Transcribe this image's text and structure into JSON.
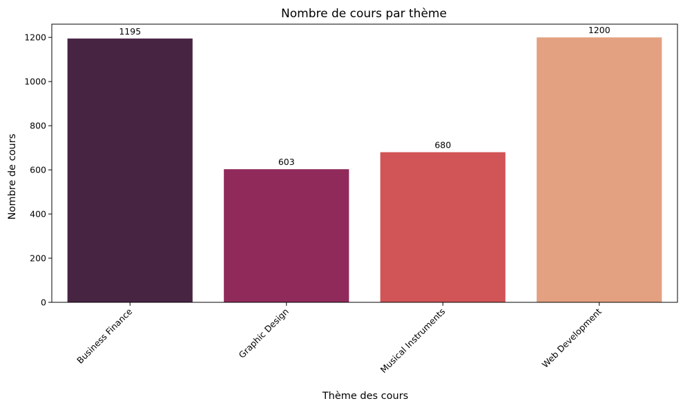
{
  "chart_data": {
    "type": "bar",
    "title": "Nombre de cours par thème",
    "xlabel": "Thème des cours",
    "ylabel": "Nombre de cours",
    "categories": [
      "Business Finance",
      "Graphic Design",
      "Musical Instruments",
      "Web Development"
    ],
    "values": [
      1195,
      603,
      680,
      1200
    ],
    "data_labels": [
      "1195",
      "603",
      "680",
      "1200"
    ],
    "colors": [
      "#482443",
      "#902a5a",
      "#d15456",
      "#e3a181"
    ],
    "ylim": [
      0,
      1260
    ],
    "yticks": [
      0,
      200,
      400,
      600,
      800,
      1000,
      1200
    ],
    "ytick_labels": [
      "0",
      "200",
      "400",
      "600",
      "800",
      "1000",
      "1200"
    ],
    "xtick_rotation": 45,
    "grid": false,
    "legend": "none"
  }
}
